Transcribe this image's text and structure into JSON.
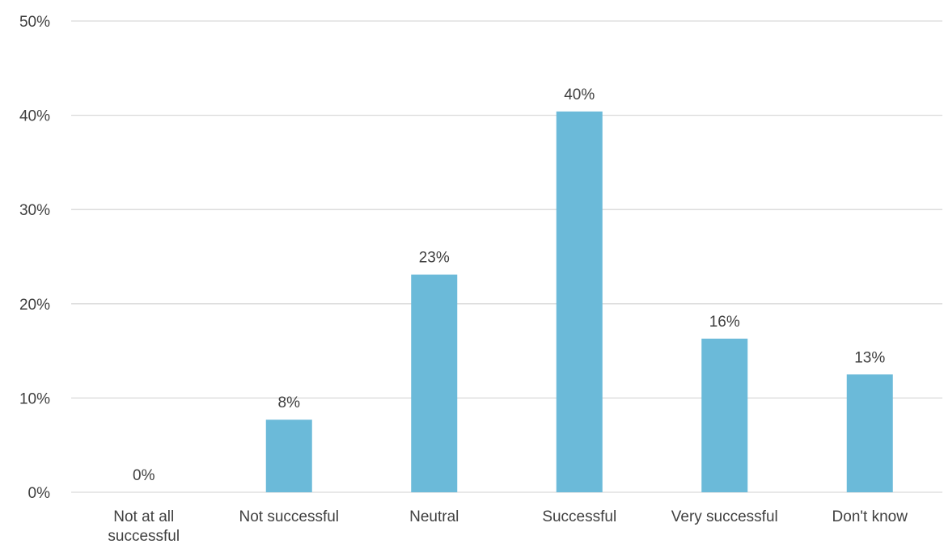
{
  "chart_data": {
    "type": "bar",
    "categories": [
      [
        "Not at all",
        "successful"
      ],
      [
        "Not successful"
      ],
      [
        "Neutral"
      ],
      [
        "Successful"
      ],
      [
        "Very successful"
      ],
      [
        "Don't know"
      ]
    ],
    "values": [
      0,
      7.7,
      23.1,
      40.4,
      16.3,
      12.5
    ],
    "data_labels": [
      "0%",
      "8%",
      "23%",
      "40%",
      "16%",
      "13%"
    ],
    "y_ticks": [
      "0%",
      "10%",
      "20%",
      "30%",
      "40%",
      "50%"
    ],
    "ylim": [
      0,
      50
    ],
    "grid": true,
    "bar_color": "#6bbad9",
    "grid_color": "#d9d9d9",
    "text_color": "#404040"
  }
}
